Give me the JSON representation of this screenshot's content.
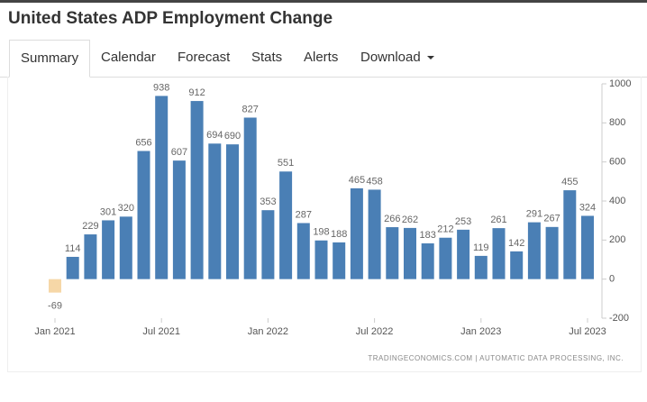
{
  "page": {
    "title": "United States ADP Employment Change",
    "tabs": [
      "Summary",
      "Calendar",
      "Forecast",
      "Stats",
      "Alerts",
      "Download"
    ]
  },
  "chart_data": {
    "type": "bar",
    "categories": [
      "Jan 2021",
      null,
      null,
      null,
      null,
      null,
      "Jul 2021",
      null,
      null,
      null,
      null,
      null,
      "Jan 2022",
      null,
      null,
      null,
      null,
      null,
      "Jul 2022",
      null,
      null,
      null,
      null,
      null,
      "Jan 2023",
      null,
      null,
      null,
      null,
      null,
      "Jul 2023"
    ],
    "values": [
      -69,
      114,
      229,
      301,
      320,
      656,
      938,
      607,
      912,
      694,
      690,
      827,
      353,
      551,
      287,
      198,
      188,
      465,
      458,
      266,
      262,
      183,
      212,
      253,
      119,
      261,
      142,
      291,
      267,
      455,
      324
    ],
    "color": "#4a7fb5",
    "negative_color": "#f6d7a7",
    "ylim": [
      -200,
      1000
    ],
    "yticks": [
      -200,
      0,
      200,
      400,
      600,
      800,
      1000
    ],
    "grid": false,
    "source": "TRADINGECONOMICS.COM  |  AUTOMATIC DATA PROCESSING, INC."
  }
}
